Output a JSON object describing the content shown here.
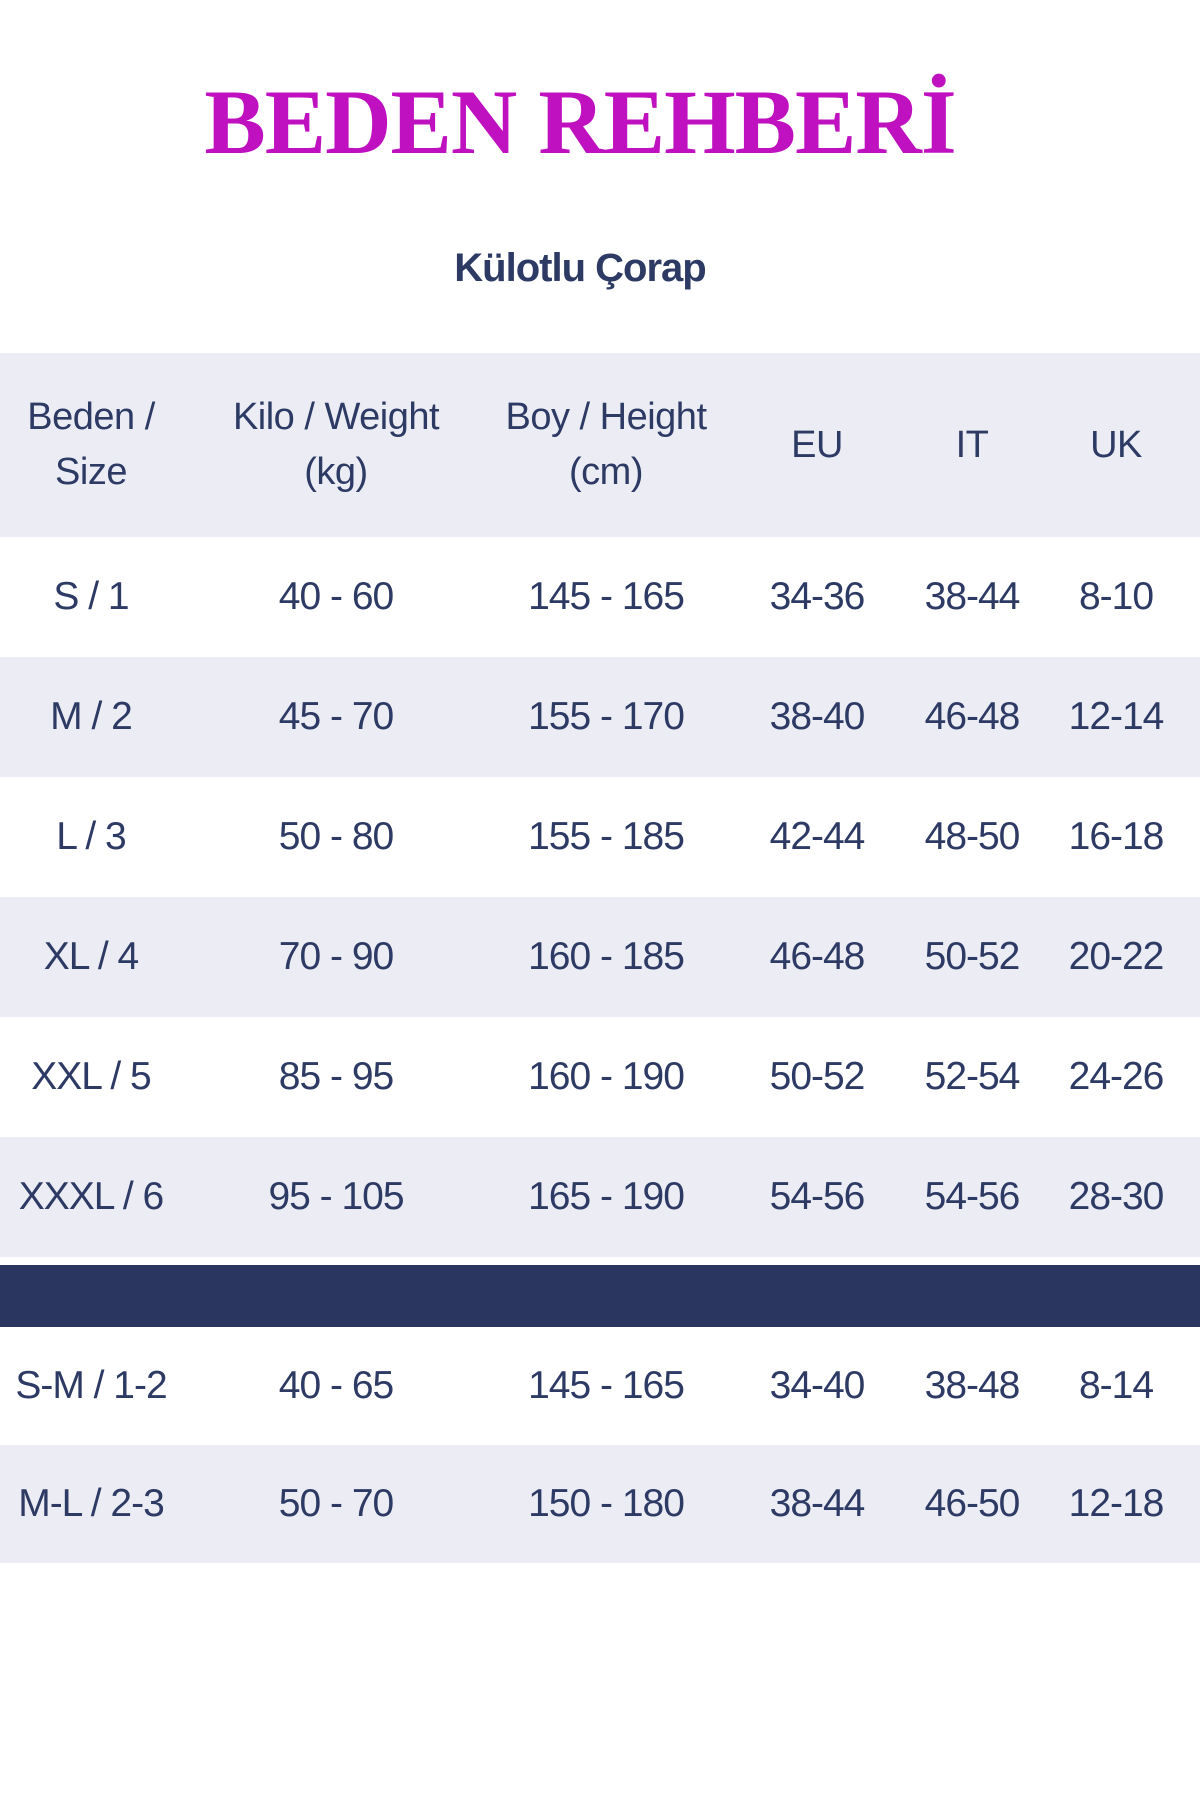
{
  "title": "BEDEN REHBERİ",
  "subtitle": "Külotlu Çorap",
  "colors": {
    "title_magenta": "#c011c0",
    "text_navy": "#2c3a64",
    "row_alt_bg": "#ecedf4",
    "divider_navy": "#2a3560",
    "page_bg": "#ffffff"
  },
  "table": {
    "headers": [
      {
        "line1": "Beden /",
        "line2": "Size"
      },
      {
        "line1": "Kilo / Weight",
        "line2": "(kg)"
      },
      {
        "line1": "Boy / Height",
        "line2": "(cm)"
      },
      {
        "line1": "EU",
        "line2": ""
      },
      {
        "line1": "IT",
        "line2": ""
      },
      {
        "line1": "UK",
        "line2": ""
      }
    ]
  },
  "chart_data": {
    "type": "table",
    "title": "BEDEN REHBERİ",
    "subtitle": "Külotlu Çorap",
    "columns": [
      "Beden / Size",
      "Kilo / Weight (kg)",
      "Boy / Height (cm)",
      "EU",
      "IT",
      "UK"
    ],
    "rows": [
      [
        "S / 1",
        "40 - 60",
        "145 - 165",
        "34-36",
        "38-44",
        "8-10"
      ],
      [
        "M / 2",
        "45 - 70",
        "155 - 170",
        "38-40",
        "46-48",
        "12-14"
      ],
      [
        "L / 3",
        "50 - 80",
        "155 - 185",
        "42-44",
        "48-50",
        "16-18"
      ],
      [
        "XL / 4",
        "70 - 90",
        "160 - 185",
        "46-48",
        "50-52",
        "20-22"
      ],
      [
        "XXL / 5",
        "85 - 95",
        "160 - 190",
        "50-52",
        "52-54",
        "24-26"
      ],
      [
        "XXXL / 6",
        "95 - 105",
        "165 - 190",
        "54-56",
        "54-56",
        "28-30"
      ],
      [
        "S-M / 1-2",
        "40 - 65",
        "145 - 165",
        "34-40",
        "38-48",
        "8-14"
      ],
      [
        "M-L / 2-3",
        "50 - 70",
        "150 - 180",
        "38-44",
        "46-50",
        "12-18"
      ]
    ],
    "divider_after_row_index": 5,
    "layout": {
      "alternating_row_colors": true,
      "first_data_row_bg": "white"
    }
  }
}
